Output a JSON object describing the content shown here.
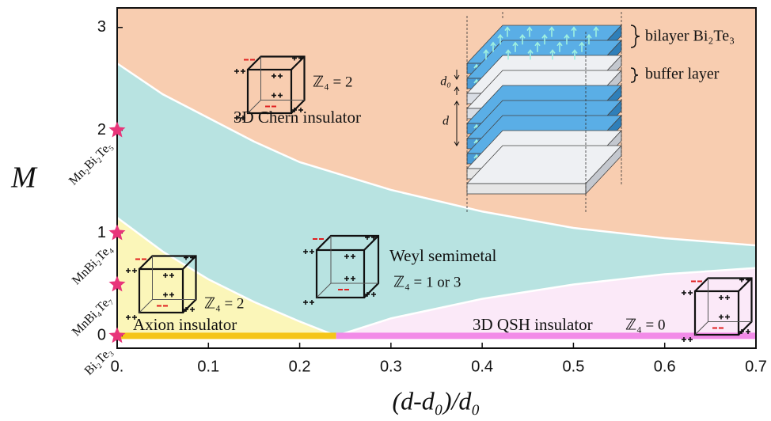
{
  "chart_data": {
    "type": "phase",
    "x_label": "(d-d₀)/d₀",
    "y_label": "M",
    "xlim": [
      0,
      0.7
    ],
    "ylim": [
      -0.12,
      3.19
    ],
    "xticks": [
      {
        "value": 0,
        "label": "0."
      },
      0.1,
      0.2,
      0.3,
      0.4,
      0.5,
      0.6,
      0.7
    ],
    "yticks": [
      0,
      1,
      2,
      3
    ],
    "background_color": "#f8cdb0",
    "boundary_color": "#ffffff",
    "regions": [
      {
        "label": "3D Chern insulator",
        "invariant": "ℤ₄ = 2",
        "color": "#f8cdb0"
      },
      {
        "label": "Weyl semimetal",
        "invariant": "ℤ₄ = 1 or 3",
        "color": "#b8e3e1"
      },
      {
        "label": "Axion insulator",
        "invariant": "ℤ₄ = 2",
        "color": "#fbf6b9"
      },
      {
        "label": "3D QSH insulator",
        "invariant": "ℤ₄ = 0",
        "color": "#fbe9f8"
      }
    ],
    "boundaries": [
      {
        "x": [
          0,
          0.05,
          0.1,
          0.15,
          0.2,
          0.3,
          0.4,
          0.5,
          0.6,
          0.7
        ],
        "values": [
          2.65,
          2.35,
          2.12,
          1.89,
          1.69,
          1.42,
          1.21,
          1.05,
          0.95,
          0.88
        ]
      },
      {
        "x": [
          0,
          0.05,
          0.1,
          0.15,
          0.2,
          0.24
        ],
        "values": [
          1.15,
          0.82,
          0.55,
          0.33,
          0.14,
          0
        ]
      },
      {
        "x": [
          0.24,
          0.3,
          0.4,
          0.5,
          0.6,
          0.7
        ],
        "values": [
          0,
          0.17,
          0.36,
          0.5,
          0.6,
          0.66
        ]
      }
    ],
    "axis_segments": [
      {
        "x": [
          0,
          0.24
        ],
        "color": "#f5c518"
      },
      {
        "x": [
          0.24,
          0.7
        ],
        "color": "#f28be8"
      }
    ],
    "star_color": "#e8357a",
    "materials": [
      {
        "label": "Bi₂Te₃",
        "y": 0
      },
      {
        "label": "MnBi₄Te₇",
        "y": 0.5
      },
      {
        "label": "MnBi₂Te₄",
        "y": 1
      },
      {
        "label": "Mn₂Bi₂Te₅",
        "y": 2
      }
    ],
    "inset": {
      "bilayer_label": "bilayer Bi₂Te₃",
      "buffer_label": "buffer layer",
      "d0_label": "d₀",
      "d_label": "d"
    }
  }
}
